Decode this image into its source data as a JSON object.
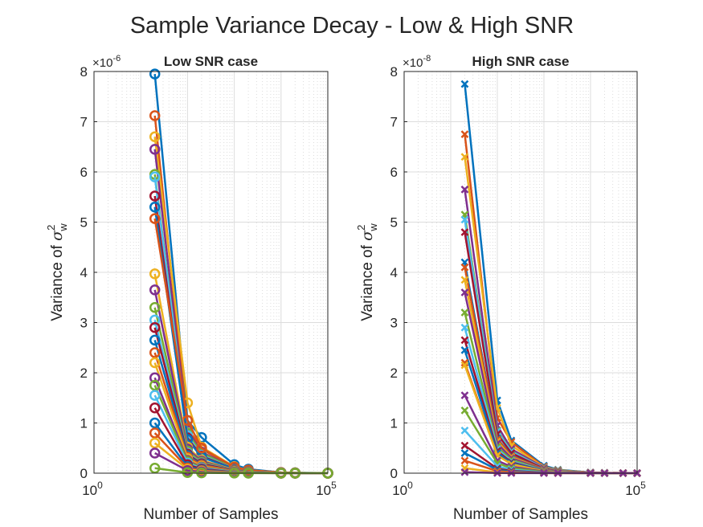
{
  "figure": {
    "title": "Sample Variance Decay - Low & High SNR"
  },
  "colors": {
    "palette": [
      "#0072BD",
      "#D95319",
      "#EDB120",
      "#7E2F8E",
      "#77AC30",
      "#4DBEEE",
      "#A2142F"
    ],
    "grid": "#dcdcdc",
    "axis": "#262626"
  },
  "chart_data": [
    {
      "type": "line",
      "title": "Low SNR case",
      "xlabel": "Number of Samples",
      "ylabel": "Variance of σ_w^2",
      "ylabel_parts": {
        "pre": "Variance of ",
        "sym": "σ",
        "sup": "2",
        "sub": "w"
      },
      "xscale": "log",
      "xlim": [
        1,
        100000
      ],
      "ylim": [
        0,
        8e-06
      ],
      "exponent_label": {
        "base": "×10",
        "exp": "-6"
      },
      "y_tick_labels": [
        "0",
        "1",
        "2",
        "3",
        "4",
        "5",
        "6",
        "7",
        "8"
      ],
      "x_tick_labels": [
        {
          "base": "10",
          "exp": "0"
        },
        {
          "base": "10",
          "exp": "5"
        }
      ],
      "marker": "circle",
      "x": [
        20,
        100,
        200,
        1000,
        2000,
        10000,
        20000,
        100000
      ],
      "grid": true,
      "series": [
        {
          "values": [
            7.95e-06,
            1.05e-06,
            7.1e-07,
            1.7e-07,
            8e-08,
            1.5e-08,
            8e-09,
            2e-09
          ]
        },
        {
          "values": [
            7.12e-06,
            9e-07,
            4.8e-07,
            1.2e-07,
            6e-08,
            1.2e-08,
            6e-09,
            1e-09
          ]
        },
        {
          "values": [
            6.7e-06,
            1.4e-06,
            5.2e-07,
            1.3e-07,
            6e-08,
            1.2e-08,
            6e-09,
            1e-09
          ]
        },
        {
          "values": [
            6.45e-06,
            8.5e-07,
            4.2e-07,
            1.1e-07,
            5e-08,
            1e-08,
            5e-09,
            1e-09
          ]
        },
        {
          "values": [
            5.95e-06,
            8e-07,
            4e-07,
            1e-07,
            5e-08,
            1e-08,
            5e-09,
            1e-09
          ]
        },
        {
          "values": [
            5.9e-06,
            7.5e-07,
            3.6e-07,
            9e-08,
            4.5e-08,
            9e-09,
            4e-09,
            1e-09
          ]
        },
        {
          "values": [
            5.52e-06,
            7e-07,
            3.4e-07,
            8.5e-08,
            4e-08,
            8e-09,
            4e-09,
            1e-09
          ]
        },
        {
          "values": [
            5.3e-06,
            6.7e-07,
            3.2e-07,
            8e-08,
            4e-08,
            8e-09,
            4e-09,
            1e-09
          ]
        },
        {
          "values": [
            5.07e-06,
            1.05e-06,
            5e-07,
            1.2e-07,
            6e-08,
            1.2e-08,
            6e-09,
            1e-09
          ]
        },
        {
          "values": [
            3.97e-06,
            5.2e-07,
            2.6e-07,
            6.5e-08,
            3e-08,
            6e-09,
            3e-09,
            1e-09
          ]
        },
        {
          "values": [
            3.65e-06,
            4.8e-07,
            2.4e-07,
            6e-08,
            3e-08,
            6e-09,
            3e-09,
            1e-09
          ]
        },
        {
          "values": [
            3.3e-06,
            4.4e-07,
            2.2e-07,
            5.5e-08,
            2.7e-08,
            5e-09,
            3e-09,
            1e-09
          ]
        },
        {
          "values": [
            3.05e-06,
            4e-07,
            2e-07,
            5e-08,
            2.5e-08,
            5e-09,
            2e-09,
            1e-09
          ]
        },
        {
          "values": [
            2.9e-06,
            3.8e-07,
            1.9e-07,
            4.8e-08,
            2.4e-08,
            5e-09,
            2e-09,
            1e-09
          ]
        },
        {
          "values": [
            2.65e-06,
            3.5e-07,
            1.7e-07,
            4.3e-08,
            2.1e-08,
            4e-09,
            2e-09,
            1e-09
          ]
        },
        {
          "values": [
            2.4e-06,
            3.2e-07,
            1.6e-07,
            4e-08,
            2e-08,
            4e-09,
            2e-09,
            1e-09
          ]
        },
        {
          "values": [
            2.2e-06,
            2.9e-07,
            1.4e-07,
            3.6e-08,
            1.8e-08,
            4e-09,
            2e-09,
            1e-09
          ]
        },
        {
          "values": [
            1.9e-06,
            2.5e-07,
            1.2e-07,
            3.1e-08,
            1.5e-08,
            3e-09,
            2e-09,
            1e-09
          ]
        },
        {
          "values": [
            1.75e-06,
            2.3e-07,
            1.1e-07,
            2.9e-08,
            1.4e-08,
            3e-09,
            1e-09,
            1e-09
          ]
        },
        {
          "values": [
            1.55e-06,
            2e-07,
            1e-07,
            2.5e-08,
            1.2e-08,
            2e-09,
            1e-09,
            1e-09
          ]
        },
        {
          "values": [
            1.3e-06,
            1.7e-07,
            8.5e-08,
            2.1e-08,
            1e-08,
            2e-09,
            1e-09,
            1e-09
          ]
        },
        {
          "values": [
            1e-06,
            1.3e-07,
            6.5e-08,
            1.6e-08,
            8e-09,
            2e-09,
            1e-09,
            1e-09
          ]
        },
        {
          "values": [
            8e-07,
            1.05e-07,
            5.2e-08,
            1.3e-08,
            6e-09,
            1e-09,
            1e-09,
            1e-09
          ]
        },
        {
          "values": [
            6e-07,
            8e-08,
            4e-08,
            1e-08,
            5e-09,
            1e-09,
            1e-09,
            1e-09
          ]
        },
        {
          "values": [
            4e-07,
            5.3e-08,
            2.6e-08,
            6.6e-09,
            3e-09,
            1e-09,
            1e-09,
            1e-09
          ]
        },
        {
          "values": [
            1e-07,
            1.3e-08,
            6.5e-09,
            1.6e-09,
            1e-09,
            1e-09,
            1e-09,
            1e-09
          ]
        }
      ]
    },
    {
      "type": "line",
      "title": "High SNR case",
      "xlabel": "Number of Samples",
      "ylabel": "Variance of σ_w^2",
      "ylabel_parts": {
        "pre": "Variance of ",
        "sym": "σ",
        "sup": "2",
        "sub": "w"
      },
      "xscale": "log",
      "xlim": [
        1,
        100000
      ],
      "ylim": [
        0,
        8e-08
      ],
      "exponent_label": {
        "base": "×10",
        "exp": "-8"
      },
      "y_tick_labels": [
        "0",
        "1",
        "2",
        "3",
        "4",
        "5",
        "6",
        "7",
        "8"
      ],
      "x_tick_labels": [
        {
          "base": "10",
          "exp": "0"
        },
        {
          "base": "10",
          "exp": "5"
        }
      ],
      "marker": "x",
      "x": [
        20,
        100,
        200,
        1000,
        2000,
        10000,
        20000,
        50000,
        100000
      ],
      "grid": true,
      "series": [
        {
          "values": [
            7.75e-08,
            1.45e-08,
            6.5e-09,
            1.5e-09,
            7e-10,
            1.5e-10,
            7e-11,
            3e-11,
            1e-11
          ]
        },
        {
          "values": [
            6.75e-08,
            1.1e-08,
            6.2e-09,
            1.3e-09,
            6e-10,
            1.3e-10,
            6e-11,
            3e-11,
            1e-11
          ]
        },
        {
          "values": [
            6.3e-08,
            1.3e-08,
            5.5e-09,
            1.2e-09,
            6e-10,
            1.2e-10,
            6e-11,
            3e-11,
            1e-11
          ]
        },
        {
          "values": [
            5.65e-08,
            9.5e-09,
            4.8e-09,
            1.1e-09,
            5e-10,
            1.1e-10,
            5e-11,
            2e-11,
            1e-11
          ]
        },
        {
          "values": [
            5.15e-08,
            8.5e-09,
            4.4e-09,
            1e-09,
            5e-10,
            1e-10,
            5e-11,
            2e-11,
            1e-11
          ]
        },
        {
          "values": [
            5.05e-08,
            8.3e-09,
            4.3e-09,
            1e-09,
            5e-10,
            1e-10,
            5e-11,
            2e-11,
            1e-11
          ]
        },
        {
          "values": [
            4.8e-08,
            7.8e-09,
            4e-09,
            9e-10,
            4.5e-10,
            9e-11,
            4e-11,
            2e-11,
            1e-11
          ]
        },
        {
          "values": [
            4.2e-08,
            6.9e-09,
            3.5e-09,
            8e-10,
            4e-10,
            8e-11,
            4e-11,
            2e-11,
            1e-11
          ]
        },
        {
          "values": [
            4.1e-08,
            6.7e-09,
            3.4e-09,
            8e-10,
            4e-10,
            8e-11,
            4e-11,
            2e-11,
            1e-11
          ]
        },
        {
          "values": [
            3.85e-08,
            6.3e-09,
            3.2e-09,
            7e-10,
            3.5e-10,
            7e-11,
            3e-11,
            2e-11,
            1e-11
          ]
        },
        {
          "values": [
            3.6e-08,
            5.9e-09,
            3e-09,
            7e-10,
            3.5e-10,
            7e-11,
            3e-11,
            2e-11,
            1e-11
          ]
        },
        {
          "values": [
            3.2e-08,
            5.2e-09,
            2.7e-09,
            6e-10,
            3e-10,
            6e-11,
            3e-11,
            1e-11,
            1e-11
          ]
        },
        {
          "values": [
            2.9e-08,
            4.8e-09,
            2.4e-09,
            5.5e-10,
            2.7e-10,
            5e-11,
            3e-11,
            1e-11,
            1e-11
          ]
        },
        {
          "values": [
            2.65e-08,
            4.4e-09,
            2.2e-09,
            5e-10,
            2.5e-10,
            5e-11,
            2e-11,
            1e-11,
            1e-11
          ]
        },
        {
          "values": [
            2.45e-08,
            4e-09,
            2e-09,
            4.6e-10,
            2.3e-10,
            5e-11,
            2e-11,
            1e-11,
            1e-11
          ]
        },
        {
          "values": [
            2.2e-08,
            3.6e-09,
            1.8e-09,
            4.1e-10,
            2e-10,
            4e-11,
            2e-11,
            1e-11,
            1e-11
          ]
        },
        {
          "values": [
            2.15e-08,
            3.5e-09,
            1.8e-09,
            4e-10,
            2e-10,
            4e-11,
            2e-11,
            1e-11,
            1e-11
          ]
        },
        {
          "values": [
            1.55e-08,
            2.5e-09,
            1.3e-09,
            3e-10,
            1.5e-10,
            3e-11,
            1e-11,
            1e-11,
            1e-11
          ]
        },
        {
          "values": [
            1.25e-08,
            2e-09,
            1e-09,
            2.4e-10,
            1.2e-10,
            2e-11,
            1e-11,
            1e-11,
            1e-11
          ]
        },
        {
          "values": [
            8.5e-09,
            1.4e-09,
            7e-10,
            1.6e-10,
            8e-11,
            2e-11,
            1e-11,
            1e-11,
            1e-11
          ]
        },
        {
          "values": [
            5.5e-09,
            9e-10,
            4.6e-10,
            1.1e-10,
            5e-11,
            1e-11,
            1e-11,
            1e-11,
            1e-11
          ]
        },
        {
          "values": [
            4e-09,
            6.5e-10,
            3.3e-10,
            8e-11,
            4e-11,
            1e-11,
            1e-11,
            1e-11,
            1e-11
          ]
        },
        {
          "values": [
            2.5e-09,
            4.1e-10,
            2.1e-10,
            5e-11,
            2e-11,
            1e-11,
            1e-11,
            1e-11,
            1e-11
          ]
        },
        {
          "values": [
            1e-09,
            1.6e-10,
            8e-11,
            2e-11,
            1e-11,
            1e-11,
            1e-11,
            1e-11,
            1e-11
          ]
        },
        {
          "values": [
            2e-10,
            3e-11,
            2e-11,
            1e-11,
            1e-11,
            1e-11,
            1e-11,
            1e-11,
            1e-11
          ]
        }
      ]
    }
  ]
}
